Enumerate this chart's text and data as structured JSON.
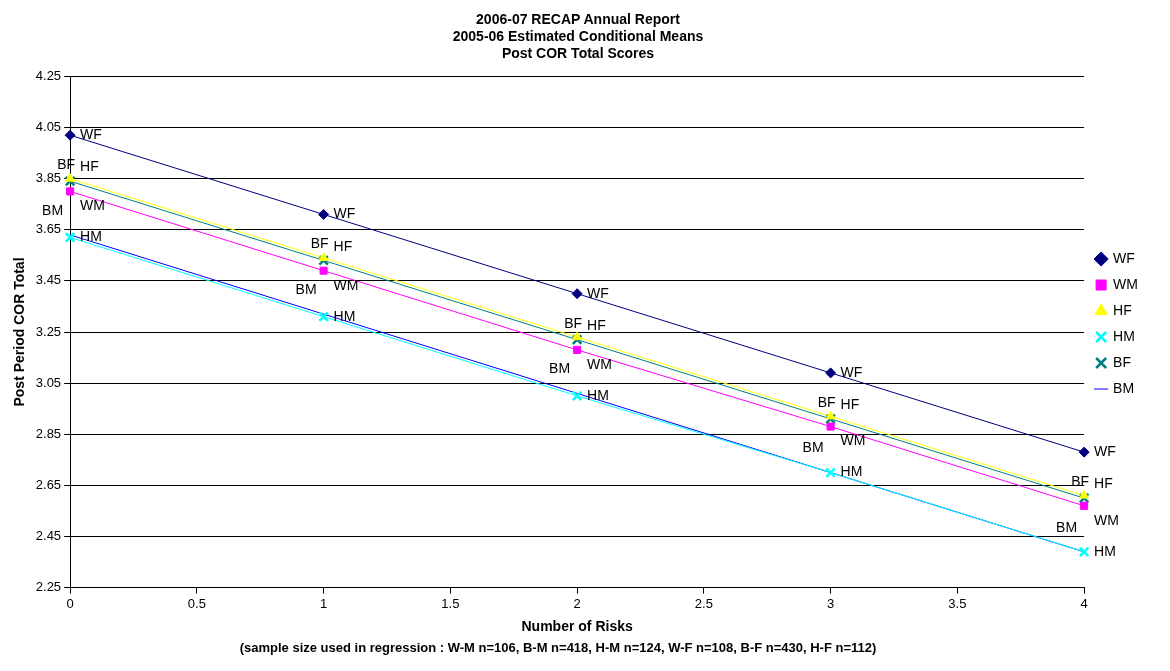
{
  "chart_data": {
    "type": "line",
    "title": "2006-07 RECAP Annual Report\n2005-06 Estimated Conditional Means\nPost COR Total Scores",
    "xlabel": "Number of Risks",
    "ylabel": "Post Period COR Total",
    "annotations": [
      "(sample size used in regression : W-M n=106, B-M n=418, H-M n=124, W-F n=108, B-F n=430, H-F n=112)"
    ],
    "x": [
      0,
      1,
      2,
      3,
      4
    ],
    "series": [
      {
        "name": "WF",
        "color": "#000080",
        "marker": "diamond",
        "values": [
          4.02,
          3.71,
          3.4,
          3.09,
          2.78
        ]
      },
      {
        "name": "WM",
        "color": "#ff00ff",
        "marker": "square",
        "values": [
          3.8,
          3.49,
          3.18,
          2.88,
          2.57
        ]
      },
      {
        "name": "HF",
        "color": "#ffff00",
        "marker": "triangle",
        "values": [
          3.85,
          3.54,
          3.23,
          2.92,
          2.61
        ]
      },
      {
        "name": "HM",
        "color": "#00ffff",
        "marker": "cross",
        "values": [
          3.62,
          3.31,
          3.0,
          2.7,
          2.39
        ]
      },
      {
        "name": "BF",
        "color": "#008080",
        "marker": "cross",
        "values": [
          3.84,
          3.53,
          3.22,
          2.91,
          2.6
        ]
      },
      {
        "name": "BM",
        "color": "#0000ff",
        "marker": "none",
        "values": [
          3.63,
          3.32,
          3.01,
          2.7,
          2.39
        ]
      }
    ],
    "xlim": [
      0,
      4
    ],
    "xticks": [
      0,
      0.5,
      1,
      1.5,
      2,
      2.5,
      3,
      3.5,
      4
    ],
    "ylim": [
      2.25,
      4.25
    ],
    "yticks": [
      2.25,
      2.45,
      2.65,
      2.85,
      3.05,
      3.25,
      3.45,
      3.65,
      3.85,
      4.05,
      4.25
    ],
    "grid": "y",
    "legend": "right",
    "line_style": "solid"
  }
}
